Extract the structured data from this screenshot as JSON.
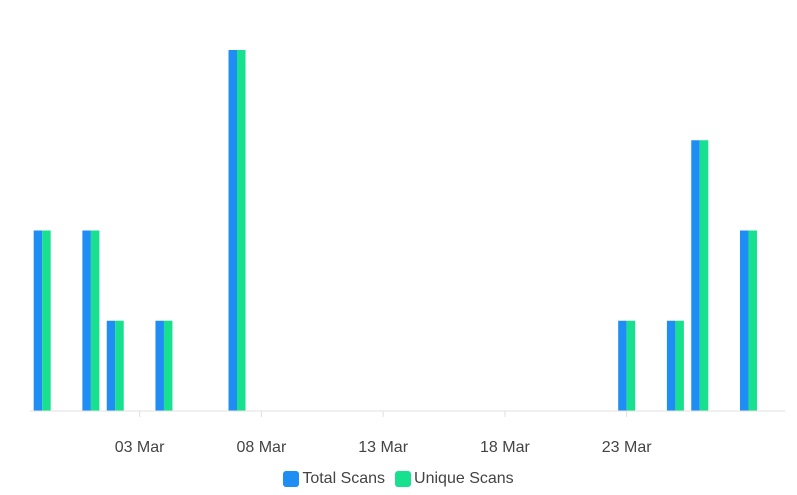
{
  "chart_data": {
    "type": "bar",
    "x": [
      "27 Feb",
      "28 Feb",
      "01 Mar",
      "02 Mar",
      "03 Mar",
      "04 Mar",
      "05 Mar",
      "06 Mar",
      "07 Mar",
      "08 Mar",
      "09 Mar",
      "10 Mar",
      "11 Mar",
      "12 Mar",
      "13 Mar",
      "14 Mar",
      "15 Mar",
      "16 Mar",
      "17 Mar",
      "18 Mar",
      "19 Mar",
      "20 Mar",
      "21 Mar",
      "22 Mar",
      "23 Mar",
      "24 Mar",
      "25 Mar",
      "26 Mar",
      "27 Mar",
      "28 Mar",
      "29 Mar"
    ],
    "x_tick_labels": [
      "03 Mar",
      "08 Mar",
      "13 Mar",
      "18 Mar",
      "23 Mar"
    ],
    "series": [
      {
        "name": "Total Scans",
        "color": "#1e8ef5",
        "values": [
          2,
          0,
          2,
          1,
          0,
          1,
          0,
          0,
          4,
          0,
          0,
          0,
          0,
          0,
          0,
          0,
          0,
          0,
          0,
          0,
          0,
          0,
          0,
          0,
          1,
          0,
          1,
          3,
          0,
          2,
          0
        ]
      },
      {
        "name": "Unique Scans",
        "color": "#17e08e",
        "values": [
          2,
          0,
          2,
          1,
          0,
          1,
          0,
          0,
          4,
          0,
          0,
          0,
          0,
          0,
          0,
          0,
          0,
          0,
          0,
          0,
          0,
          0,
          0,
          0,
          1,
          0,
          1,
          3,
          0,
          2,
          0
        ]
      }
    ],
    "ylim": [
      0,
      4
    ],
    "grid": false,
    "legend": "bottom-center"
  }
}
